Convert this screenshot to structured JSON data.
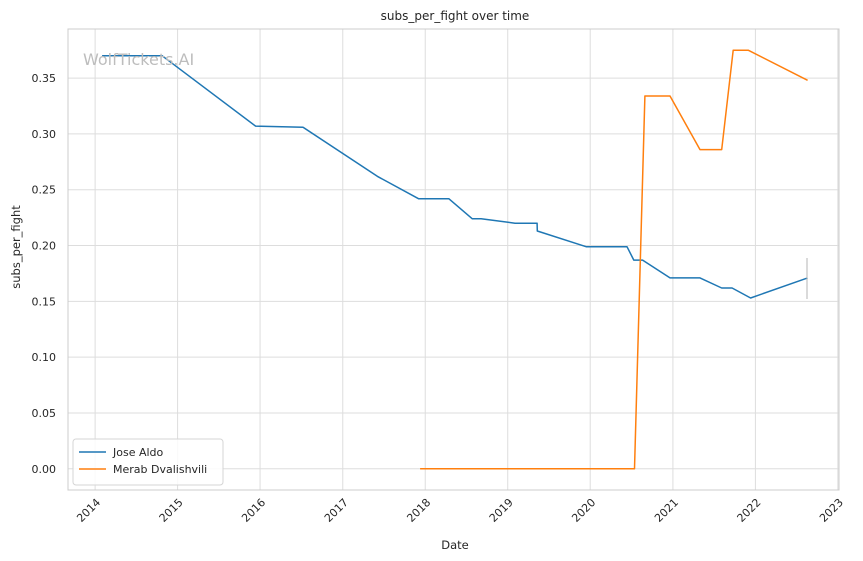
{
  "watermark": "WolfTickets.AI",
  "legend_location": "lower-left",
  "chart_data": {
    "type": "line",
    "title": "subs_per_fight over time",
    "xlabel": "Date",
    "ylabel": "subs_per_fight",
    "x_ticks": [
      "2014",
      "2015",
      "2016",
      "2017",
      "2018",
      "2019",
      "2020",
      "2021",
      "2022",
      "2023"
    ],
    "y_ticks": [
      "0.00",
      "0.05",
      "0.10",
      "0.15",
      "0.20",
      "0.25",
      "0.30",
      "0.35"
    ],
    "ylim": [
      -0.019,
      0.394
    ],
    "xlim": [
      "2013-09-03",
      "2023-01-06"
    ],
    "grid": true,
    "series": [
      {
        "name": "Jose Aldo",
        "color": "#1f77b4",
        "points": [
          [
            "2014-02-01",
            0.37
          ],
          [
            "2014-10-25",
            0.37
          ],
          [
            "2015-12-12",
            0.307
          ],
          [
            "2016-07-09",
            0.306
          ],
          [
            "2017-06-03",
            0.262
          ],
          [
            "2017-12-02",
            0.242
          ],
          [
            "2018-04-15",
            0.242
          ],
          [
            "2018-07-28",
            0.224
          ],
          [
            "2018-09-05",
            0.224
          ],
          [
            "2019-02-02",
            0.22
          ],
          [
            "2019-05-11",
            0.22
          ],
          [
            "2019-05-12",
            0.213
          ],
          [
            "2019-12-14",
            0.199
          ],
          [
            "2020-06-12",
            0.199
          ],
          [
            "2020-07-12",
            0.187
          ],
          [
            "2020-08-20",
            0.187
          ],
          [
            "2020-12-19",
            0.171
          ],
          [
            "2021-05-01",
            0.171
          ],
          [
            "2021-08-05",
            0.162
          ],
          [
            "2021-09-20",
            0.162
          ],
          [
            "2021-12-11",
            0.153
          ],
          [
            "2022-08-20",
            0.171
          ]
        ]
      },
      {
        "name": "Merab Dvalishvili",
        "color": "#ff7f0e",
        "points": [
          [
            "2017-12-09",
            0.0
          ],
          [
            "2020-07-15",
            0.0
          ],
          [
            "2020-08-30",
            0.334
          ],
          [
            "2020-12-19",
            0.334
          ],
          [
            "2021-05-01",
            0.286
          ],
          [
            "2021-08-05",
            0.286
          ],
          [
            "2021-09-25",
            0.375
          ],
          [
            "2021-11-30",
            0.375
          ],
          [
            "2022-08-20",
            0.348
          ]
        ]
      }
    ]
  }
}
